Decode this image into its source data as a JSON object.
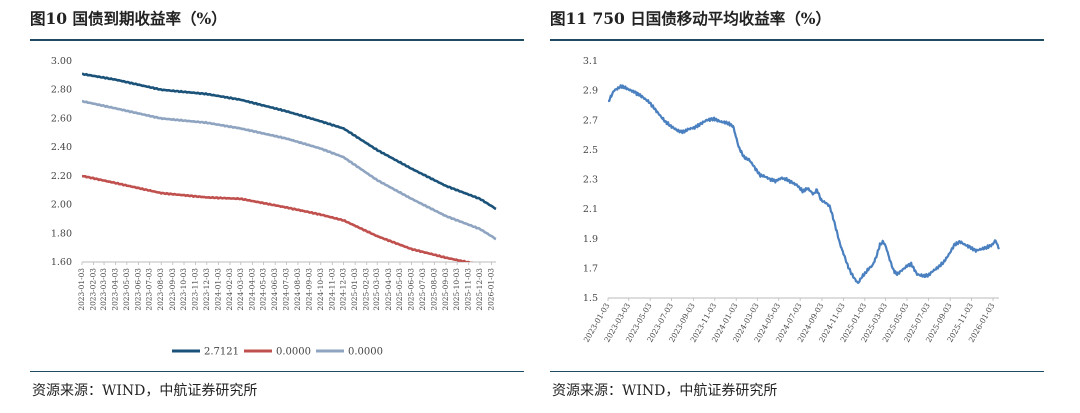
{
  "left": {
    "title": "图10  国债到期收益率（%）",
    "source": "资源来源：WIND，中航证券研究所",
    "chart_data": {
      "type": "line",
      "xlabel": "",
      "ylabel": "",
      "ylim": [
        1.6,
        3.0
      ],
      "yticks": [
        "3.00",
        "2.80",
        "2.60",
        "2.40",
        "2.20",
        "2.00",
        "1.80",
        "1.60"
      ],
      "yticks_values": [
        3.0,
        2.8,
        2.6,
        2.4,
        2.2,
        2.0,
        1.8,
        1.6
      ],
      "x_range": [
        "2023-01-03",
        "2026-01-15"
      ],
      "categories": [
        "2023-01-03",
        "2023-02-03",
        "2023-03-03",
        "2023-04-03",
        "2023-05-03",
        "2023-06-03",
        "2023-07-03",
        "2023-08-03",
        "2023-09-03",
        "2023-10-03",
        "2023-11-03",
        "2023-12-03",
        "2024-01-03",
        "2024-02-03",
        "2024-03-03",
        "2024-04-03",
        "2024-05-03",
        "2024-06-03",
        "2024-07-03",
        "2024-08-03",
        "2024-09-03",
        "2024-10-03",
        "2024-11-03",
        "2024-12-03",
        "2025-01-03",
        "2025-02-03",
        "2025-03-03",
        "2025-04-03",
        "2025-05-03",
        "2025-06-03",
        "2025-07-03",
        "2025-08-03",
        "2025-09-03",
        "2025-10-03",
        "2025-11-03",
        "2025-12-03",
        "2026-01-03"
      ],
      "grid": false,
      "legend": "bottom",
      "series": [
        {
          "name": "2.7121",
          "color": "#1b5279",
          "x": [
            "2023-01-03",
            "2023-04-03",
            "2023-08-03",
            "2023-12-03",
            "2024-03-03",
            "2024-07-03",
            "2024-10-03",
            "2024-12-03",
            "2025-03-03",
            "2025-06-03",
            "2025-09-03",
            "2025-12-03",
            "2026-01-15"
          ],
          "y": [
            2.91,
            2.87,
            2.8,
            2.77,
            2.73,
            2.65,
            2.58,
            2.53,
            2.38,
            2.25,
            2.13,
            2.04,
            1.97
          ]
        },
        {
          "name": "0.0000",
          "color": "#c0504d",
          "x": [
            "2023-01-03",
            "2023-04-03",
            "2023-08-03",
            "2023-12-03",
            "2024-03-03",
            "2024-07-03",
            "2024-10-03",
            "2024-12-03",
            "2025-03-03",
            "2025-06-03",
            "2025-09-03",
            "2025-11-15"
          ],
          "y": [
            2.2,
            2.15,
            2.08,
            2.05,
            2.04,
            1.98,
            1.93,
            1.89,
            1.78,
            1.69,
            1.63,
            1.59
          ]
        },
        {
          "name": "0.0000",
          "color": "#8ea4c0",
          "x": [
            "2023-01-03",
            "2023-04-03",
            "2023-08-03",
            "2023-12-03",
            "2024-03-03",
            "2024-07-03",
            "2024-10-03",
            "2024-12-03",
            "2025-03-03",
            "2025-06-03",
            "2025-09-03",
            "2025-12-03",
            "2026-01-15"
          ],
          "y": [
            2.72,
            2.67,
            2.6,
            2.57,
            2.53,
            2.46,
            2.39,
            2.33,
            2.17,
            2.04,
            1.92,
            1.83,
            1.76
          ]
        }
      ]
    }
  },
  "right": {
    "title": "图11  750 日国债移动平均收益率（%）",
    "source": "资源来源：WIND，中航证券研究所",
    "chart_data": {
      "type": "line",
      "xlabel": "",
      "ylabel": "",
      "ylim": [
        1.5,
        3.1
      ],
      "yticks": [
        "3.1",
        "2.9",
        "2.7",
        "2.5",
        "2.3",
        "2.1",
        "1.9",
        "1.7",
        "1.5"
      ],
      "yticks_values": [
        3.1,
        2.9,
        2.7,
        2.5,
        2.3,
        2.1,
        1.9,
        1.7,
        1.5
      ],
      "x_range": [
        "2023-01-03",
        "2026-01-20"
      ],
      "categories": [
        "2023-01-03",
        "2023-03-03",
        "2023-05-03",
        "2023-07-03",
        "2023-09-03",
        "2023-11-03",
        "2024-01-03",
        "2024-03-03",
        "2024-05-03",
        "2024-07-03",
        "2024-09-03",
        "2024-11-03",
        "2025-01-03",
        "2025-03-03",
        "2025-05-03",
        "2025-07-03",
        "2025-09-03",
        "2025-11-03",
        "2026-01-03"
      ],
      "grid": false,
      "legend": "none",
      "series": [
        {
          "name": "",
          "color": "#4a80bf",
          "x": [
            "2023-01-03",
            "2023-01-20",
            "2023-02-10",
            "2023-03-01",
            "2023-03-20",
            "2023-04-10",
            "2023-05-01",
            "2023-05-15",
            "2023-06-01",
            "2023-06-15",
            "2023-07-01",
            "2023-07-20",
            "2023-08-05",
            "2023-08-20",
            "2023-09-05",
            "2023-09-20",
            "2023-10-10",
            "2023-11-01",
            "2023-11-20",
            "2023-12-10",
            "2023-12-25",
            "2024-01-10",
            "2024-01-25",
            "2024-02-10",
            "2024-02-25",
            "2024-03-10",
            "2024-03-25",
            "2024-04-10",
            "2024-04-25",
            "2024-05-10",
            "2024-05-25",
            "2024-06-10",
            "2024-06-25",
            "2024-07-10",
            "2024-07-25",
            "2024-08-10",
            "2024-08-20",
            "2024-09-01",
            "2024-09-15",
            "2024-09-25",
            "2024-10-05",
            "2024-10-15",
            "2024-10-25",
            "2024-11-05",
            "2024-11-15",
            "2024-11-25",
            "2024-12-05",
            "2024-12-15",
            "2024-12-25",
            "2025-01-05",
            "2025-01-15",
            "2025-01-25",
            "2025-02-05",
            "2025-02-15",
            "2025-02-25",
            "2025-03-05",
            "2025-03-15",
            "2025-03-25",
            "2025-04-05",
            "2025-04-15",
            "2025-04-25",
            "2025-05-05",
            "2025-05-15",
            "2025-06-01",
            "2025-06-15",
            "2025-07-01",
            "2025-07-15",
            "2025-08-01",
            "2025-08-15",
            "2025-09-01",
            "2025-09-15",
            "2025-10-01",
            "2025-10-15",
            "2025-11-01",
            "2025-11-15",
            "2025-12-01",
            "2025-12-15",
            "2026-01-01",
            "2026-01-10",
            "2026-01-20"
          ],
          "y": [
            2.82,
            2.9,
            2.93,
            2.91,
            2.89,
            2.86,
            2.82,
            2.78,
            2.73,
            2.69,
            2.66,
            2.63,
            2.62,
            2.64,
            2.65,
            2.67,
            2.7,
            2.71,
            2.69,
            2.68,
            2.66,
            2.52,
            2.45,
            2.43,
            2.38,
            2.33,
            2.32,
            2.3,
            2.29,
            2.31,
            2.3,
            2.28,
            2.26,
            2.22,
            2.24,
            2.2,
            2.23,
            2.16,
            2.14,
            2.12,
            2.04,
            1.95,
            1.86,
            1.79,
            1.72,
            1.67,
            1.63,
            1.6,
            1.64,
            1.67,
            1.7,
            1.72,
            1.78,
            1.86,
            1.88,
            1.84,
            1.76,
            1.69,
            1.66,
            1.68,
            1.7,
            1.72,
            1.73,
            1.66,
            1.65,
            1.65,
            1.68,
            1.71,
            1.74,
            1.8,
            1.86,
            1.88,
            1.86,
            1.84,
            1.82,
            1.83,
            1.84,
            1.86,
            1.89,
            1.83
          ]
        }
      ]
    }
  }
}
